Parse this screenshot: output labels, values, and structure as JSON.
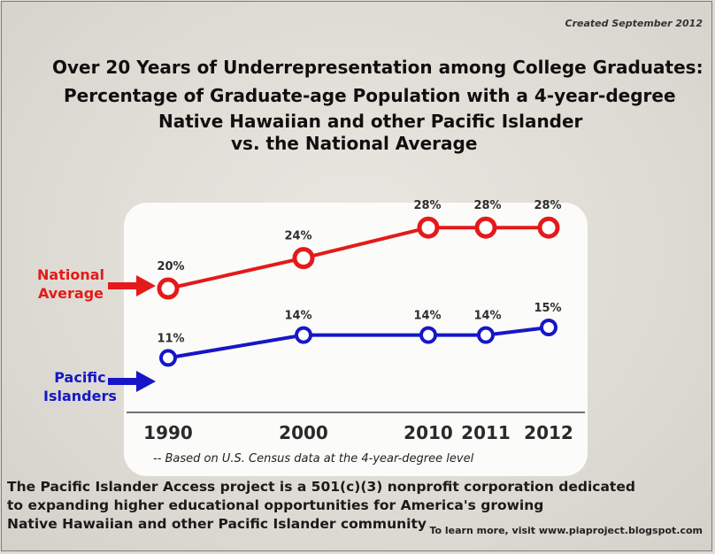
{
  "created_note": "Created September 2012",
  "title_lines": [
    "Over 20 Years of Underrepresentation among College Graduates:",
    "Percentage of Graduate-age Population with a 4-year-degree",
    "Native Hawaiian and other Pacific Islander",
    "vs. the National Average"
  ],
  "series_labels": {
    "national": [
      "National",
      "Average"
    ],
    "pacific": [
      "Pacific",
      "Islanders"
    ]
  },
  "footnote": "-- Based on U.S. Census data at the 4-year-degree level",
  "mission_lines": [
    "The Pacific Islander Access project is a 501(c)(3) nonprofit corporation dedicated",
    "to expanding higher educational opportunities for America's growing",
    "Native Hawaiian and other Pacific Islander community"
  ],
  "learn_more": "To learn more, visit www.piaproject.blogspot.com",
  "chart_data": {
    "type": "line",
    "x": [
      1990,
      2000,
      2010,
      2011,
      2012
    ],
    "categories": [
      "1990",
      "2000",
      "2010",
      "2011",
      "2012"
    ],
    "ylabel": "",
    "xlabel": "",
    "series": [
      {
        "name": "National Average",
        "values": [
          20,
          24,
          28,
          28,
          28
        ],
        "labels": [
          "20%",
          "24%",
          "28%",
          "28%",
          "28%"
        ],
        "color": "#e41a1a"
      },
      {
        "name": "Pacific Islanders",
        "values": [
          11,
          14,
          14,
          14,
          15
        ],
        "labels": [
          "11%",
          "14%",
          "14%",
          "14%",
          "15%"
        ],
        "color": "#1616c8"
      }
    ]
  },
  "colors": {
    "national": "#e41a1a",
    "pacific": "#1616c8",
    "axis": "#444444"
  }
}
